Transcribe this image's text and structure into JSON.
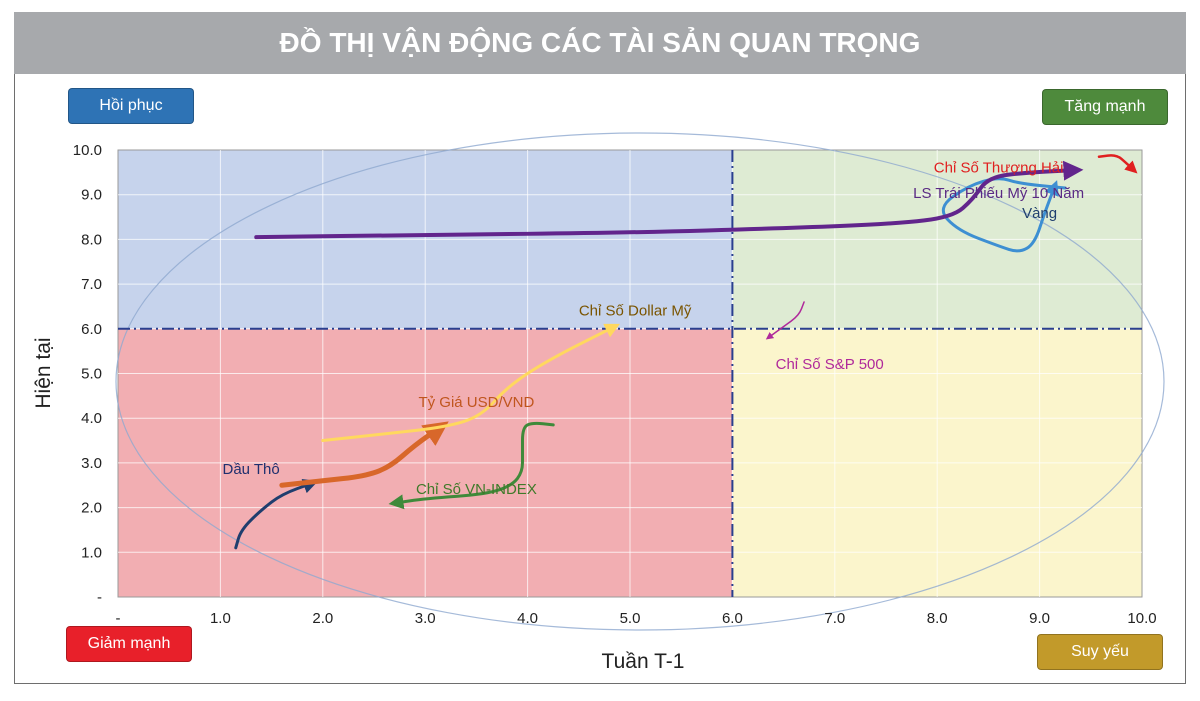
{
  "title": "ĐỒ THỊ VẬN ĐỘNG CÁC TÀI SẢN QUAN TRỌNG",
  "quadrants": {
    "top_left": "Hồi phục",
    "top_right": "Tăng mạnh",
    "bottom_left": "Giảm mạnh",
    "bottom_right": "Suy yếu"
  },
  "colors": {
    "top_left_fill": "#c6d3ec",
    "top_right_fill": "#deebd3",
    "bottom_left_fill": "#f2aeb2",
    "bottom_right_fill": "#fbf5cc",
    "title_bar": "#a7a9ac"
  },
  "chart_data": {
    "type": "line",
    "xlabel": "Tuần T-1",
    "ylabel": "Hiện tại",
    "xlim": [
      0,
      10
    ],
    "ylim": [
      0,
      10
    ],
    "x_ticks": [
      "-",
      "1.0",
      "2.0",
      "3.0",
      "4.0",
      "5.0",
      "6.0",
      "7.0",
      "8.0",
      "9.0",
      "10.0"
    ],
    "y_ticks": [
      "-",
      "1.0",
      "2.0",
      "3.0",
      "4.0",
      "5.0",
      "6.0",
      "7.0",
      "8.0",
      "9.0",
      "10.0"
    ],
    "divider_x": 6.0,
    "divider_y": 6.0,
    "grid": true,
    "series": [
      {
        "name": "Dầu Thô",
        "color": "#1f3e6e",
        "width": 3,
        "points": [
          [
            1.15,
            1.1
          ],
          [
            1.2,
            1.5
          ],
          [
            1.4,
            1.95
          ],
          [
            1.6,
            2.3
          ],
          [
            1.9,
            2.55
          ]
        ]
      },
      {
        "name": "Tỷ Giá USD/VND",
        "color": "#d8672a",
        "width": 5,
        "points": [
          [
            1.6,
            2.5
          ],
          [
            2.0,
            2.6
          ],
          [
            2.4,
            2.7
          ],
          [
            2.65,
            2.9
          ],
          [
            2.9,
            3.4
          ],
          [
            3.15,
            3.8
          ]
        ]
      },
      {
        "name": "Chỉ Số Dollar Mỹ",
        "color": "#ffd85e",
        "width": 3,
        "points": [
          [
            2.0,
            3.5
          ],
          [
            2.6,
            3.65
          ],
          [
            3.2,
            3.8
          ],
          [
            3.55,
            4.05
          ],
          [
            3.8,
            4.7
          ],
          [
            4.2,
            5.3
          ],
          [
            4.85,
            6.05
          ]
        ]
      },
      {
        "name": "Chỉ Số VN-INDEX",
        "color": "#3f8a3a",
        "width": 3,
        "points": [
          [
            4.25,
            3.85
          ],
          [
            4.05,
            3.9
          ],
          [
            3.95,
            3.8
          ],
          [
            3.95,
            3.2
          ],
          [
            3.95,
            2.8
          ],
          [
            3.85,
            2.5
          ],
          [
            3.6,
            2.3
          ],
          [
            3.0,
            2.2
          ],
          [
            2.7,
            2.1
          ]
        ]
      },
      {
        "name": "Chỉ Số S&P 500",
        "color": "#b0299b",
        "width": 1.5,
        "points": [
          [
            6.7,
            6.6
          ],
          [
            6.65,
            6.3
          ],
          [
            6.5,
            6.05
          ],
          [
            6.35,
            5.8
          ]
        ]
      },
      {
        "name": "Vàng",
        "color": "#3d8fd2",
        "width": 3,
        "points": [
          [
            9.25,
            9.15
          ],
          [
            8.8,
            9.25
          ],
          [
            8.6,
            9.4
          ],
          [
            8.3,
            9.2
          ],
          [
            8.0,
            8.7
          ],
          [
            8.2,
            8.2
          ],
          [
            8.6,
            7.85
          ],
          [
            8.8,
            7.7
          ],
          [
            8.95,
            7.9
          ],
          [
            9.05,
            8.6
          ],
          [
            9.15,
            9.2
          ]
        ]
      },
      {
        "name": "LS Trái Phiếu Mỹ 10 Năm",
        "color": "#62258c",
        "width": 4,
        "points": [
          [
            1.35,
            8.05
          ],
          [
            3.0,
            8.1
          ],
          [
            5.0,
            8.15
          ],
          [
            6.5,
            8.25
          ],
          [
            7.6,
            8.35
          ],
          [
            8.15,
            8.5
          ],
          [
            8.35,
            8.9
          ],
          [
            8.5,
            9.4
          ],
          [
            8.9,
            9.5
          ],
          [
            9.35,
            9.55
          ]
        ]
      },
      {
        "name": "Chỉ Số Thượng Hải",
        "color": "#e02020",
        "width": 2.5,
        "points": [
          [
            9.58,
            9.85
          ],
          [
            9.75,
            9.9
          ],
          [
            9.85,
            9.7
          ],
          [
            9.92,
            9.55
          ]
        ]
      }
    ],
    "annotations": [
      {
        "text": "Chỉ Số Thượng Hải",
        "x": 8.6,
        "y": 9.5,
        "color": "#e02020"
      },
      {
        "text": "LS Trái Phiếu Mỹ 10 Năm",
        "x": 8.6,
        "y": 8.93,
        "color": "#5a2a84"
      },
      {
        "text": "Vàng",
        "x": 9.0,
        "y": 8.48,
        "color": "#1f3e6e"
      },
      {
        "text": "Chỉ Số Dollar Mỹ",
        "x": 5.05,
        "y": 6.3,
        "color": "#7a5400"
      },
      {
        "text": "Chỉ Số S&P 500",
        "x": 6.95,
        "y": 5.1,
        "color": "#b0299b"
      },
      {
        "text": "Tỷ Giá USD/VND",
        "x": 3.5,
        "y": 4.25,
        "color": "#c0561e"
      },
      {
        "text": "Chỉ Số VN-INDEX",
        "x": 3.5,
        "y": 2.3,
        "color": "#3f7a2a"
      },
      {
        "text": "Dầu Thô",
        "x": 1.3,
        "y": 2.75,
        "color": "#1f2f6e"
      }
    ]
  }
}
